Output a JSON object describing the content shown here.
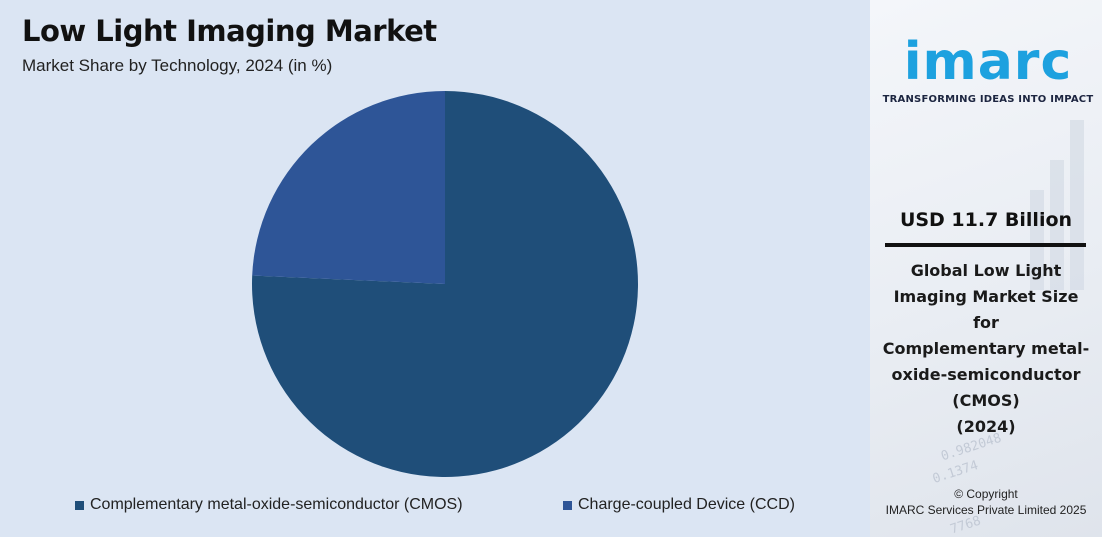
{
  "chart_data": {
    "type": "pie",
    "title": "Low Light Imaging Market",
    "subtitle": "Market Share by Technology, 2024 (in %)",
    "categories": [
      "Complementary metal-oxide-semiconductor (CMOS)",
      "Charge-coupled Device (CCD)"
    ],
    "values": [
      75.7,
      24.3
    ],
    "colors": [
      "#1f4e79",
      "#2e5597"
    ],
    "start_angle_deg": 0,
    "direction": "clockwise",
    "legend_position": "bottom"
  },
  "legend": {
    "items": [
      {
        "label": "Complementary metal-oxide-semiconductor (CMOS)",
        "color": "#1f4e79"
      },
      {
        "label": "Charge-coupled Device (CCD)",
        "color": "#2e5597"
      }
    ]
  },
  "side_panel": {
    "logo_text": "imarc",
    "logo_tagline": "TRANSFORMING IDEAS INTO IMPACT",
    "logo_color": "#1da1df",
    "market_value": "USD 11.7 Billion",
    "description_lines": [
      "Global Low Light",
      "Imaging Market Size for",
      "Complementary metal-",
      "oxide-semiconductor",
      "(CMOS)",
      "(2024)"
    ],
    "copyright_line1": "© Copyright",
    "copyright_line2": "IMARC Services Private Limited 2025"
  }
}
